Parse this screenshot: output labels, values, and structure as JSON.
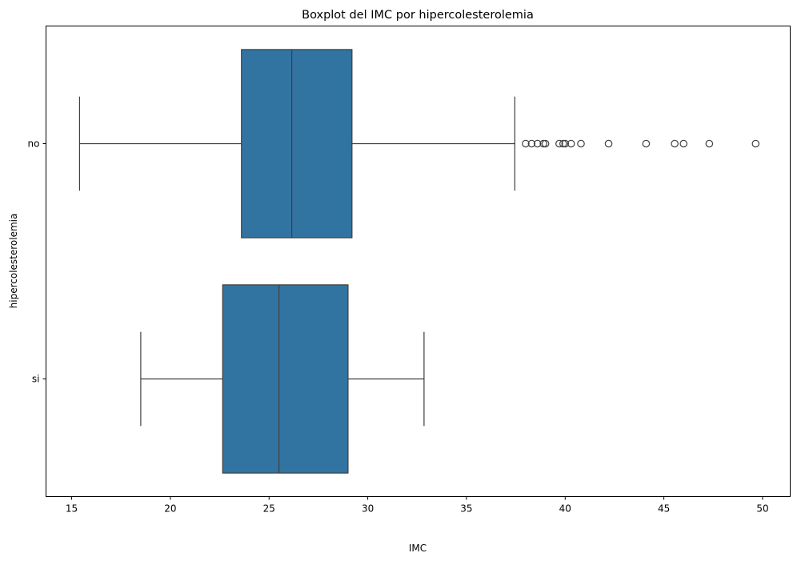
{
  "chart_data": {
    "type": "boxplot",
    "orientation": "horizontal",
    "title": "Boxplot del IMC por hipercolesterolemia",
    "xlabel": "IMC",
    "ylabel": "hipercolesterolemia",
    "xlim": [
      13.7,
      51.4
    ],
    "xticks": [
      15,
      20,
      25,
      30,
      35,
      40,
      45,
      50
    ],
    "grid": false,
    "box_color": "#3274a1",
    "line_color": "#3f3f3f",
    "categories": [
      "no",
      "si"
    ],
    "boxes": [
      {
        "category": "no",
        "whisker_low": 15.4,
        "q1": 23.6,
        "median": 26.15,
        "q3": 29.2,
        "whisker_high": 37.45,
        "outliers": [
          38.0,
          38.3,
          38.6,
          38.9,
          39.0,
          39.7,
          39.9,
          40.0,
          40.3,
          40.8,
          42.2,
          44.1,
          45.55,
          46.0,
          47.3,
          49.65
        ]
      },
      {
        "category": "si",
        "whisker_low": 18.5,
        "q1": 22.65,
        "median": 25.5,
        "q3": 29.0,
        "whisker_high": 32.85,
        "outliers": []
      }
    ]
  }
}
